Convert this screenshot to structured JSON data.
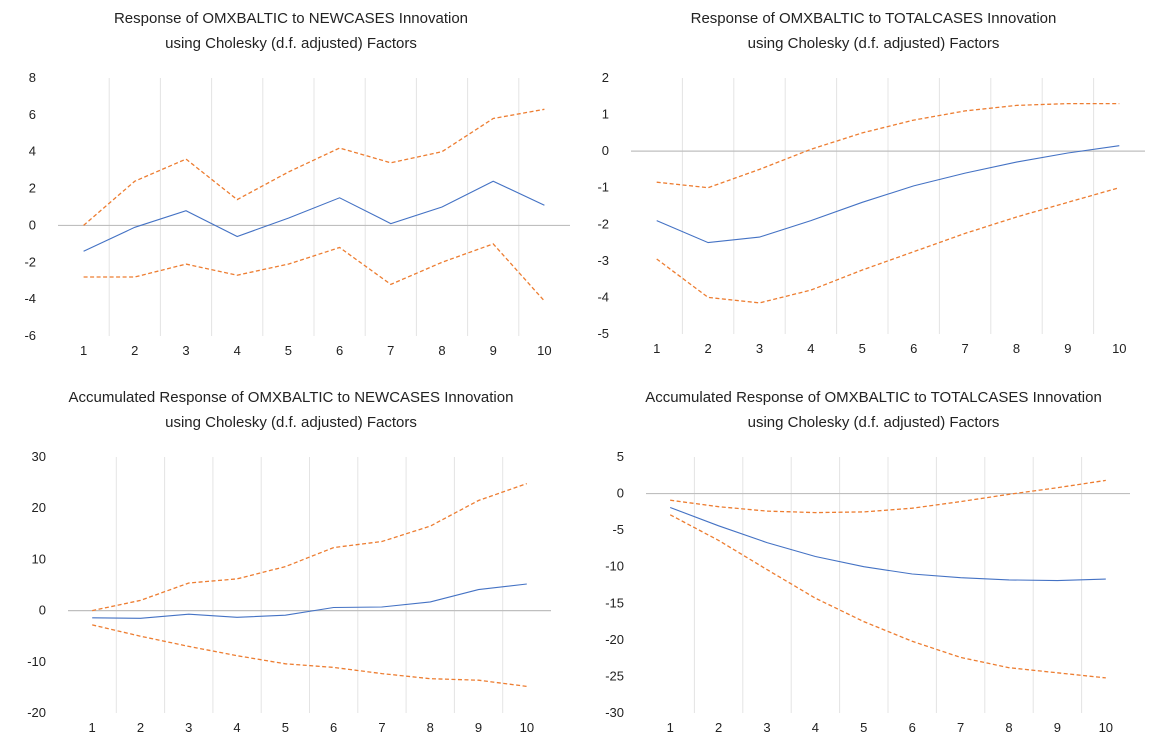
{
  "chart_data": [
    {
      "type": "line",
      "title": "Response of OMXBALTIC to NEWCASES Innovation",
      "subtitle": "using Cholesky (d.f. adjusted) Factors",
      "x": [
        1,
        2,
        3,
        4,
        5,
        6,
        7,
        8,
        9,
        10
      ],
      "ylim": [
        -6,
        8
      ],
      "yticks": [
        -6,
        -4,
        -2,
        0,
        2,
        4,
        6,
        8
      ],
      "grid": "vertical",
      "series": [
        {
          "role": "response",
          "color": "#4472c4",
          "style": "solid",
          "values": [
            -1.4,
            -0.1,
            0.8,
            -0.6,
            0.4,
            1.5,
            0.1,
            1.0,
            2.4,
            1.1
          ]
        },
        {
          "role": "upper",
          "color": "#ed7d31",
          "style": "dashed",
          "values": [
            0.0,
            2.4,
            3.6,
            1.4,
            2.9,
            4.2,
            3.4,
            4.0,
            5.8,
            6.3
          ]
        },
        {
          "role": "lower",
          "color": "#ed7d31",
          "style": "dashed",
          "values": [
            -2.8,
            -2.8,
            -2.1,
            -2.7,
            -2.1,
            -1.2,
            -3.2,
            -2.0,
            -1.0,
            -4.1
          ]
        }
      ]
    },
    {
      "type": "line",
      "title": "Response of OMXBALTIC to TOTALCASES Innovation",
      "subtitle": "using Cholesky (d.f. adjusted) Factors",
      "x": [
        1,
        2,
        3,
        4,
        5,
        6,
        7,
        8,
        9,
        10
      ],
      "ylim": [
        -5,
        2
      ],
      "yticks": [
        -5,
        -4,
        -3,
        -2,
        -1,
        0,
        1,
        2
      ],
      "grid": "vertical",
      "series": [
        {
          "role": "response",
          "color": "#4472c4",
          "style": "solid",
          "values": [
            -1.9,
            -2.5,
            -2.35,
            -1.9,
            -1.4,
            -0.95,
            -0.6,
            -0.3,
            -0.05,
            0.15
          ]
        },
        {
          "role": "upper",
          "color": "#ed7d31",
          "style": "dashed",
          "values": [
            -0.85,
            -1.0,
            -0.5,
            0.05,
            0.5,
            0.85,
            1.1,
            1.25,
            1.3,
            1.3
          ]
        },
        {
          "role": "lower",
          "color": "#ed7d31",
          "style": "dashed",
          "values": [
            -2.95,
            -4.0,
            -4.15,
            -3.8,
            -3.25,
            -2.75,
            -2.25,
            -1.8,
            -1.4,
            -1.0
          ]
        }
      ]
    },
    {
      "type": "line",
      "title": "Accumulated Response of OMXBALTIC to NEWCASES Innovation",
      "subtitle": "using Cholesky (d.f. adjusted) Factors",
      "x": [
        1,
        2,
        3,
        4,
        5,
        6,
        7,
        8,
        9,
        10
      ],
      "ylim": [
        -20,
        30
      ],
      "yticks": [
        -20,
        -10,
        0,
        10,
        20,
        30
      ],
      "grid": "vertical",
      "series": [
        {
          "role": "response",
          "color": "#4472c4",
          "style": "solid",
          "values": [
            -1.4,
            -1.5,
            -0.7,
            -1.3,
            -0.9,
            0.6,
            0.7,
            1.7,
            4.1,
            5.2
          ]
        },
        {
          "role": "upper",
          "color": "#ed7d31",
          "style": "dashed",
          "values": [
            0.0,
            2.0,
            5.4,
            6.2,
            8.6,
            12.3,
            13.5,
            16.5,
            21.5,
            24.8
          ]
        },
        {
          "role": "lower",
          "color": "#ed7d31",
          "style": "dashed",
          "values": [
            -2.8,
            -5.0,
            -7.0,
            -8.8,
            -10.4,
            -11.1,
            -12.3,
            -13.3,
            -13.6,
            -14.8
          ]
        }
      ]
    },
    {
      "type": "line",
      "title": "Accumulated Response of OMXBALTIC to TOTALCASES Innovation",
      "subtitle": "using Cholesky (d.f. adjusted) Factors",
      "x": [
        1,
        2,
        3,
        4,
        5,
        6,
        7,
        8,
        9,
        10
      ],
      "ylim": [
        -30,
        5
      ],
      "yticks": [
        -30,
        -25,
        -20,
        -15,
        -10,
        -5,
        0,
        5
      ],
      "grid": "vertical",
      "series": [
        {
          "role": "response",
          "color": "#4472c4",
          "style": "solid",
          "values": [
            -1.9,
            -4.4,
            -6.7,
            -8.6,
            -10.0,
            -11.0,
            -11.5,
            -11.8,
            -11.9,
            -11.7
          ]
        },
        {
          "role": "upper",
          "color": "#ed7d31",
          "style": "dashed",
          "values": [
            -0.9,
            -1.8,
            -2.4,
            -2.6,
            -2.5,
            -2.0,
            -1.1,
            -0.1,
            0.8,
            1.8
          ]
        },
        {
          "role": "lower",
          "color": "#ed7d31",
          "style": "dashed",
          "values": [
            -2.9,
            -6.4,
            -10.4,
            -14.3,
            -17.5,
            -20.2,
            -22.4,
            -23.8,
            -24.5,
            -25.2
          ]
        }
      ]
    }
  ]
}
